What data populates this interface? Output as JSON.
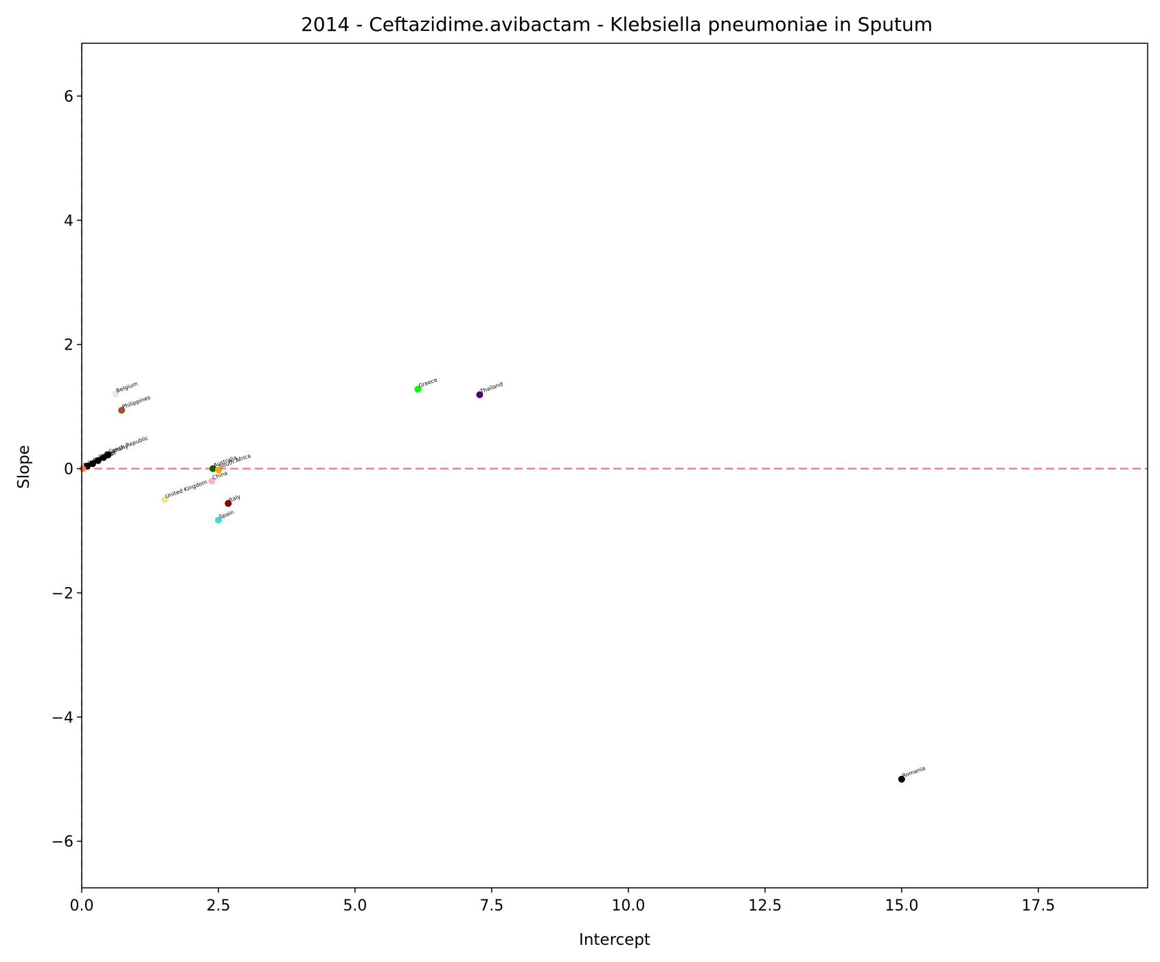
{
  "chart_data": {
    "type": "scatter",
    "title": "2014 - Ceftazidime.avibactam - Klebsiella pneumoniae in Sputum",
    "xlabel": "Intercept",
    "ylabel": "Slope",
    "xlim": [
      0,
      19.5
    ],
    "ylim": [
      -6.75,
      6.85
    ],
    "xticks": [
      0,
      2.5,
      5,
      7.5,
      10,
      12.5,
      15,
      17.5
    ],
    "xtick_labels": [
      "0.0",
      "2.5",
      "5.0",
      "7.5",
      "10.0",
      "12.5",
      "15.0",
      "17.5"
    ],
    "yticks": [
      -6,
      -4,
      -2,
      0,
      2,
      4,
      6
    ],
    "ytick_labels": [
      "−6",
      "−4",
      "−2",
      "0",
      "2",
      "4",
      "6"
    ],
    "grid": false,
    "reference_lines": [
      {
        "orientation": "horizontal",
        "value": 0,
        "color": "#f08080",
        "style": "dashed"
      },
      {
        "orientation": "vertical",
        "value": 0,
        "color": "#2e8b57",
        "style": "dashed"
      }
    ],
    "points": [
      {
        "label": "Belgium",
        "x": 0.62,
        "y": 1.2,
        "color": "#e6e6fa"
      },
      {
        "label": "Philippines",
        "x": 0.73,
        "y": 0.94,
        "color": "#a0522d"
      },
      {
        "label": "Greece",
        "x": 6.15,
        "y": 1.28,
        "color": "#00ff00"
      },
      {
        "label": "Thailand",
        "x": 7.28,
        "y": 1.19,
        "color": "#4b0082"
      },
      {
        "label": "Australia",
        "x": 2.4,
        "y": 0.0,
        "color": "#006400"
      },
      {
        "label": "South Africa",
        "x": 2.5,
        "y": -0.02,
        "color": "#ffa500"
      },
      {
        "label": "China",
        "x": 2.38,
        "y": -0.2,
        "color": "#ffb6c1"
      },
      {
        "label": "United Kingdom",
        "x": 1.52,
        "y": -0.5,
        "color": "#f0e68c"
      },
      {
        "label": "Spain",
        "x": 2.5,
        "y": -0.83,
        "color": "#40e0d0"
      },
      {
        "label": "Italy",
        "x": 2.68,
        "y": -0.56,
        "color": "#8b0000"
      },
      {
        "label": "Romania",
        "x": 15.0,
        "y": -5.0,
        "color": "#000000"
      },
      {
        "label": "Czech Republic",
        "x": 0.48,
        "y": 0.22,
        "color": "#000000"
      },
      {
        "label": "Germany",
        "x": 0.4,
        "y": 0.18,
        "color": "#000000"
      },
      {
        "label": "France",
        "x": 0.3,
        "y": 0.13,
        "color": "#000000"
      },
      {
        "label": "Portugal",
        "x": 0.2,
        "y": 0.08,
        "color": "#000000"
      },
      {
        "label": "Israel",
        "x": 0.1,
        "y": 0.04,
        "color": "#000000"
      },
      {
        "label": "Poland",
        "x": 0.02,
        "y": 0.0,
        "color": "#ff7f50"
      }
    ]
  }
}
